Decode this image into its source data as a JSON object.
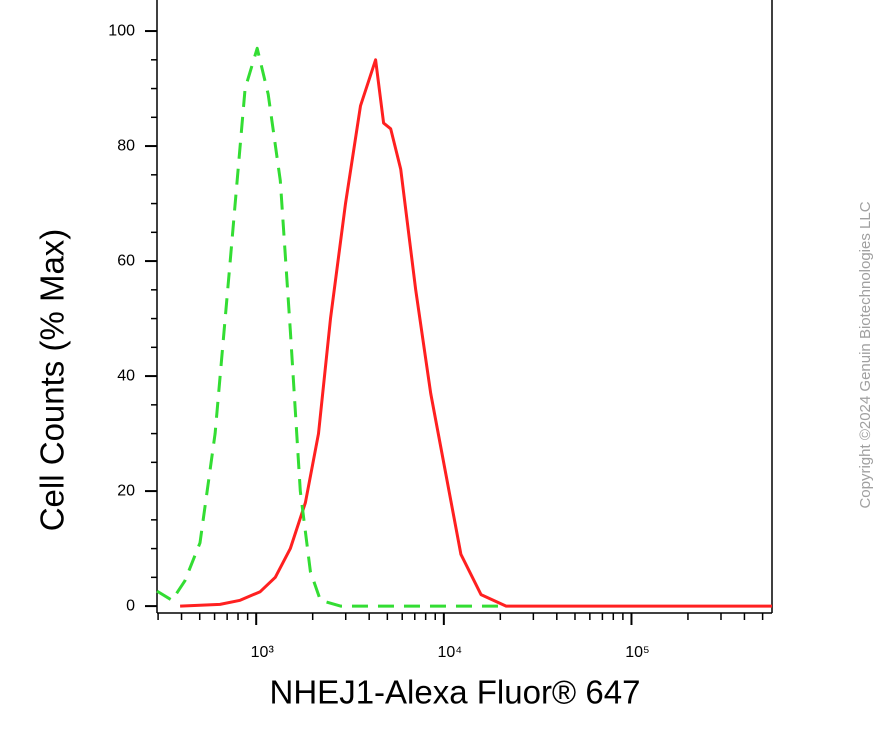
{
  "chart_data": {
    "type": "line",
    "x_label": "NHEJ1-Alexa Fluor® 647",
    "y_label": "Cell Counts (% Max)",
    "copyright": "Copyright ©2024 Genuin Biotechnologies LLC",
    "xscale": "log",
    "xlim": [
      296,
      561000
    ],
    "ylim": [
      -1.2,
      105.4
    ],
    "xticks": [
      {
        "value": 1000,
        "label": "10³"
      },
      {
        "value": 10000,
        "label": "10⁴"
      },
      {
        "value": 100000,
        "label": "10⁵"
      }
    ],
    "xminorticks": [
      300,
      400,
      500,
      600,
      700,
      800,
      900,
      2000,
      3000,
      4000,
      5000,
      6000,
      7000,
      8000,
      9000,
      20000,
      30000,
      40000,
      50000,
      60000,
      70000,
      80000,
      90000,
      200000,
      300000,
      400000,
      500000
    ],
    "yticks": [
      0,
      20,
      40,
      60,
      80,
      100
    ],
    "yminorticks": [
      5,
      10,
      15,
      25,
      30,
      35,
      45,
      50,
      55,
      65,
      70,
      75,
      85,
      90,
      95
    ],
    "grid": false,
    "series": [
      {
        "color": "#ff2020",
        "dash": "solid",
        "x": [
          393,
          641,
          821,
          1050,
          1264,
          1520,
          1829,
          2147,
          2490,
          2993,
          3597,
          4326,
          4775,
          5210,
          5891,
          7083,
          8516,
          10250,
          12330,
          15770,
          21460,
          561000
        ],
        "values": [
          0,
          0.3,
          1,
          2.5,
          5,
          10,
          18,
          30,
          50,
          70,
          87,
          95,
          84,
          83,
          76,
          55,
          37,
          23,
          9,
          2,
          0,
          0
        ]
      },
      {
        "color": "#33dd33",
        "dash": "dashed",
        "x": [
          296,
          356,
          417,
          502,
          604,
          727,
          873,
          1012,
          1159,
          1344,
          1520,
          1719,
          1945,
          2199,
          2812,
          20180
        ],
        "values": [
          2.6,
          1,
          4.4,
          11,
          30,
          60,
          90,
          97,
          89,
          74,
          48,
          20,
          6,
          1,
          0,
          0
        ]
      }
    ]
  }
}
